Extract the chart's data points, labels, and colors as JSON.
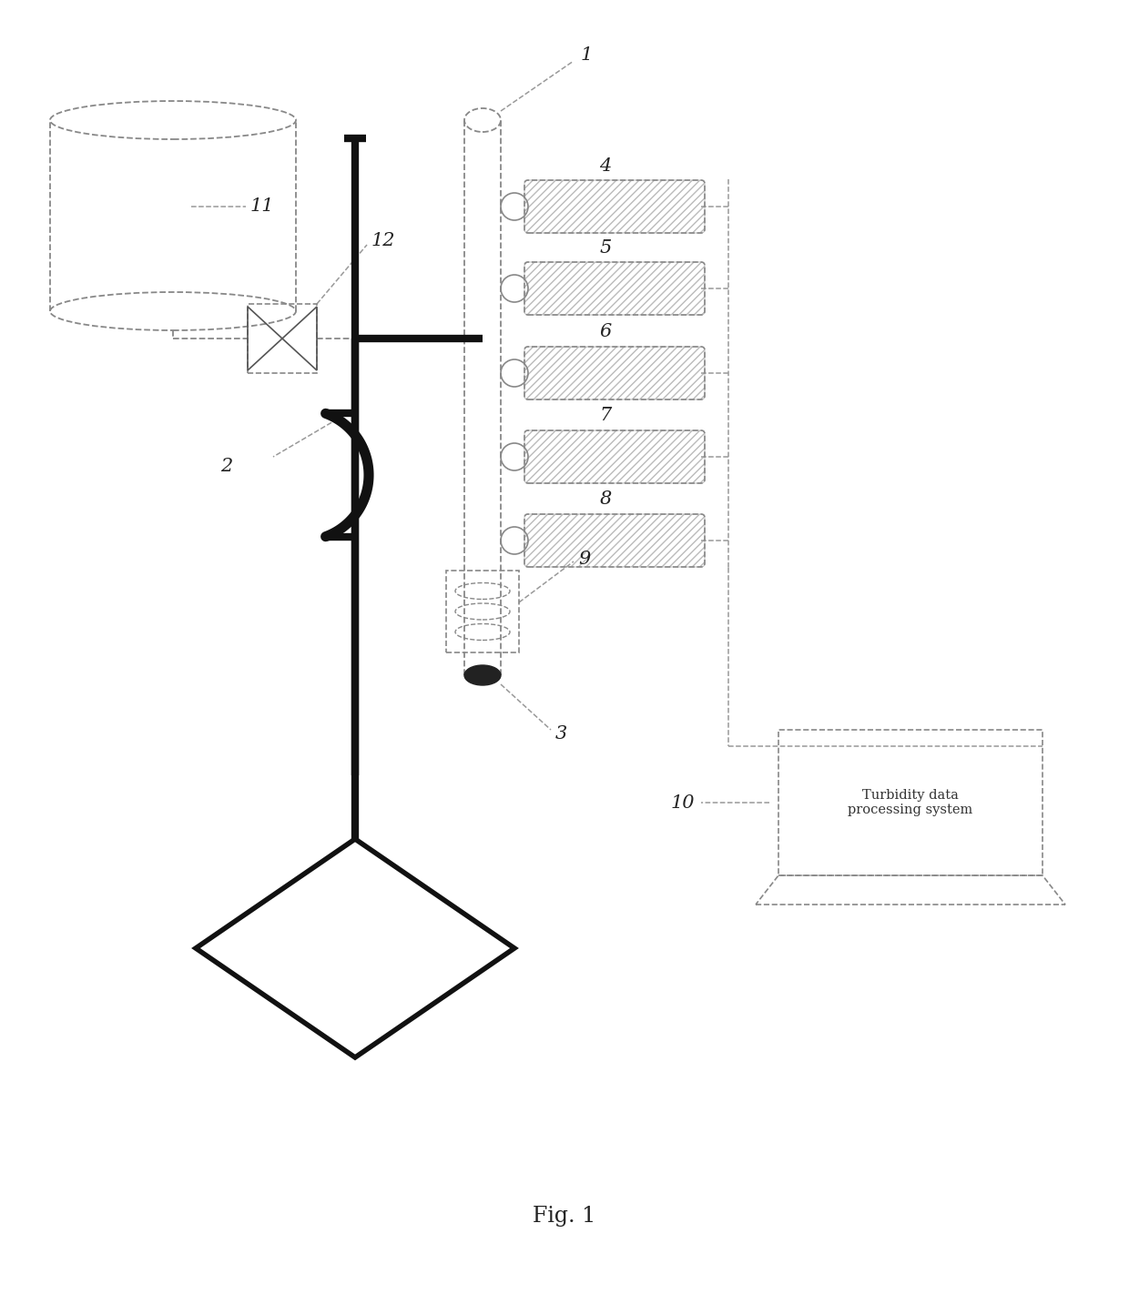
{
  "background_color": "#ffffff",
  "line_color": "#888888",
  "heavy_line_color": "#111111",
  "fig_label": "Fig. 1",
  "turbidity_text": "Turbidity data\nprocessing system",
  "sensor_labels": [
    "4",
    "5",
    "6",
    "7",
    "8"
  ],
  "label_fontsize": 15,
  "fig_fontsize": 17,
  "turbidity_fontsize": 10.5
}
